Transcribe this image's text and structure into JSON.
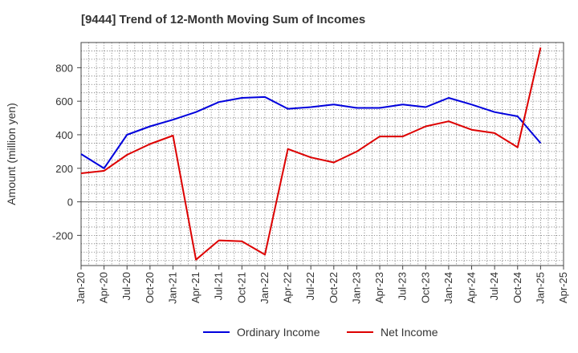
{
  "chart_data": {
    "type": "line",
    "title": "[9444]  Trend of 12-Month Moving Sum of Incomes",
    "xlabel": "",
    "ylabel": "Amount (million yen)",
    "ylim": [
      -380,
      950
    ],
    "yticks": [
      -200,
      0,
      200,
      400,
      600,
      800
    ],
    "categories": [
      "Jan-20",
      "Apr-20",
      "Jul-20",
      "Oct-20",
      "Jan-21",
      "Apr-21",
      "Jul-21",
      "Oct-21",
      "Jan-22",
      "Apr-22",
      "Jul-22",
      "Oct-22",
      "Jan-23",
      "Apr-23",
      "Jul-23",
      "Oct-23",
      "Jan-24",
      "Apr-24",
      "Jul-24",
      "Oct-24",
      "Jan-25",
      "Apr-25"
    ],
    "series": [
      {
        "name": "Ordinary Income",
        "color": "#0000dd",
        "values": [
          285,
          200,
          400,
          450,
          490,
          535,
          595,
          620,
          625,
          555,
          565,
          580,
          560,
          560,
          580,
          565,
          620,
          580,
          535,
          510,
          350,
          null
        ]
      },
      {
        "name": "Net Income",
        "color": "#dd0000",
        "values": [
          170,
          185,
          280,
          345,
          395,
          -345,
          -230,
          -235,
          -315,
          315,
          265,
          235,
          300,
          390,
          390,
          450,
          480,
          430,
          410,
          325,
          920,
          null
        ]
      }
    ],
    "grid": true,
    "legend_position": "bottom"
  }
}
